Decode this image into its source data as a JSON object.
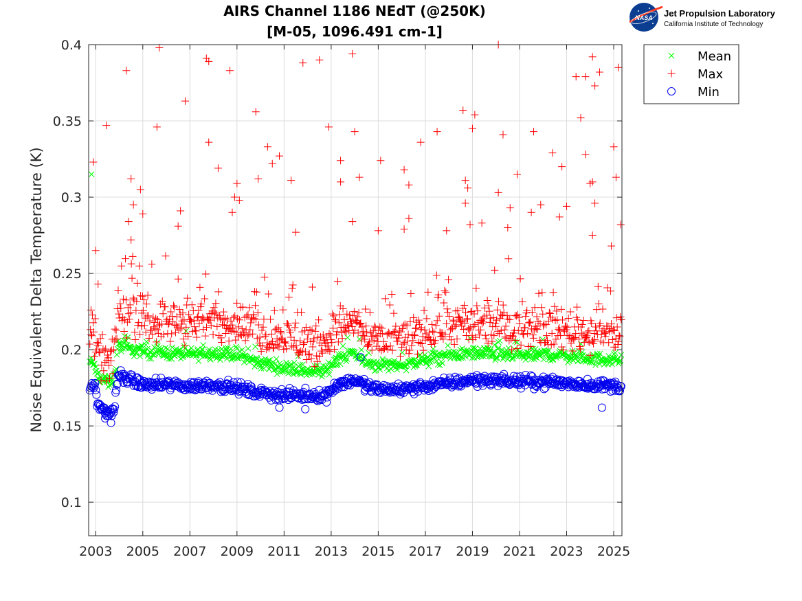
{
  "logo": {
    "org_name": "Jet Propulsion Laboratory",
    "org_sub": "California Institute of Technology",
    "badge_text": "NASA"
  },
  "chart_data": {
    "type": "scatter",
    "title": "AIRS Channel 1186 NEdT (@250K)",
    "subtitle": "[M-05, 1096.491 cm-1]",
    "xlabel": "",
    "ylabel": "Noise Equivalent Delta Temperature (K)",
    "xlim": [
      2002.7,
      2025.35
    ],
    "ylim": [
      0.078,
      0.4
    ],
    "x_ticks": [
      2003,
      2005,
      2007,
      2009,
      2011,
      2013,
      2015,
      2017,
      2019,
      2021,
      2023,
      2025
    ],
    "x_tick_labels": [
      "2003",
      "2005",
      "2007",
      "2009",
      "2011",
      "2013",
      "2015",
      "2017",
      "2019",
      "2021",
      "2023",
      "2025"
    ],
    "y_ticks": [
      0.1,
      0.15,
      0.2,
      0.25,
      0.3,
      0.35,
      0.4
    ],
    "y_tick_labels": [
      "0.1",
      "0.15",
      "0.2",
      "0.25",
      "0.3",
      "0.35",
      "0.4"
    ],
    "grid": true,
    "legend_position": "outside-top-right",
    "series": [
      {
        "name": "Mean",
        "marker": "x",
        "color": "#00ff00",
        "baseline": [
          [
            2002.75,
            0.192
          ],
          [
            2002.95,
            0.19
          ],
          [
            2003.05,
            0.182
          ],
          [
            2003.35,
            0.18
          ],
          [
            2003.6,
            0.178
          ],
          [
            2003.8,
            0.182
          ],
          [
            2003.95,
            0.203
          ],
          [
            2004.5,
            0.2
          ],
          [
            2005.0,
            0.199
          ],
          [
            2006.0,
            0.198
          ],
          [
            2007.0,
            0.197
          ],
          [
            2008.0,
            0.198
          ],
          [
            2009.0,
            0.197
          ],
          [
            2009.8,
            0.192
          ],
          [
            2010.5,
            0.19
          ],
          [
            2011.0,
            0.188
          ],
          [
            2012.0,
            0.186
          ],
          [
            2012.8,
            0.186
          ],
          [
            2013.2,
            0.194
          ],
          [
            2014.0,
            0.198
          ],
          [
            2014.5,
            0.191
          ],
          [
            2015.0,
            0.19
          ],
          [
            2016.0,
            0.19
          ],
          [
            2017.0,
            0.193
          ],
          [
            2018.0,
            0.196
          ],
          [
            2019.0,
            0.198
          ],
          [
            2020.0,
            0.197
          ],
          [
            2021.0,
            0.196
          ],
          [
            2022.0,
            0.197
          ],
          [
            2023.0,
            0.196
          ],
          [
            2024.0,
            0.194
          ],
          [
            2025.35,
            0.193
          ]
        ],
        "spread": 0.006,
        "outliers": [
          [
            2002.82,
            0.315
          ],
          [
            2020.1,
            0.205
          ],
          [
            2014.2,
            0.207
          ]
        ]
      },
      {
        "name": "Max",
        "marker": "+",
        "color": "#ff0000",
        "baseline": [
          [
            2002.75,
            0.21
          ],
          [
            2002.9,
            0.212
          ],
          [
            2003.05,
            0.196
          ],
          [
            2003.35,
            0.193
          ],
          [
            2003.6,
            0.192
          ],
          [
            2003.8,
            0.196
          ],
          [
            2003.95,
            0.225
          ],
          [
            2004.5,
            0.222
          ],
          [
            2005.0,
            0.22
          ],
          [
            2006.0,
            0.218
          ],
          [
            2007.0,
            0.217
          ],
          [
            2008.0,
            0.219
          ],
          [
            2009.0,
            0.218
          ],
          [
            2009.8,
            0.213
          ],
          [
            2010.5,
            0.21
          ],
          [
            2011.0,
            0.208
          ],
          [
            2012.0,
            0.204
          ],
          [
            2012.8,
            0.205
          ],
          [
            2013.2,
            0.215
          ],
          [
            2014.0,
            0.218
          ],
          [
            2014.5,
            0.207
          ],
          [
            2015.0,
            0.206
          ],
          [
            2016.0,
            0.207
          ],
          [
            2017.0,
            0.211
          ],
          [
            2018.0,
            0.215
          ],
          [
            2019.0,
            0.216
          ],
          [
            2020.0,
            0.216
          ],
          [
            2021.0,
            0.215
          ],
          [
            2022.0,
            0.215
          ],
          [
            2023.0,
            0.213
          ],
          [
            2024.0,
            0.211
          ],
          [
            2025.35,
            0.21
          ]
        ],
        "spread": 0.02,
        "outliers": [
          [
            2002.8,
            0.226
          ],
          [
            2002.9,
            0.323
          ],
          [
            2003.0,
            0.265
          ],
          [
            2003.1,
            0.243
          ],
          [
            2003.45,
            0.347
          ],
          [
            2004.3,
            0.383
          ],
          [
            2004.5,
            0.312
          ],
          [
            2004.9,
            0.305
          ],
          [
            2004.6,
            0.295
          ],
          [
            2005.0,
            0.289
          ],
          [
            2004.4,
            0.284
          ],
          [
            2004.5,
            0.272
          ],
          [
            2005.6,
            0.346
          ],
          [
            2005.7,
            0.398
          ],
          [
            2006.6,
            0.291
          ],
          [
            2006.5,
            0.281
          ],
          [
            2006.8,
            0.363
          ],
          [
            2007.7,
            0.391
          ],
          [
            2007.8,
            0.389
          ],
          [
            2007.8,
            0.336
          ],
          [
            2008.2,
            0.319
          ],
          [
            2008.7,
            0.383
          ],
          [
            2008.8,
            0.29
          ],
          [
            2008.9,
            0.3
          ],
          [
            2009.0,
            0.309
          ],
          [
            2009.1,
            0.298
          ],
          [
            2009.8,
            0.356
          ],
          [
            2009.9,
            0.312
          ],
          [
            2010.3,
            0.333
          ],
          [
            2010.5,
            0.322
          ],
          [
            2010.8,
            0.327
          ],
          [
            2011.3,
            0.311
          ],
          [
            2011.5,
            0.277
          ],
          [
            2011.8,
            0.388
          ],
          [
            2012.5,
            0.39
          ],
          [
            2012.9,
            0.346
          ],
          [
            2013.4,
            0.324
          ],
          [
            2013.4,
            0.31
          ],
          [
            2013.9,
            0.394
          ],
          [
            2014.0,
            0.343
          ],
          [
            2013.9,
            0.284
          ],
          [
            2014.2,
            0.313
          ],
          [
            2015.1,
            0.324
          ],
          [
            2015.0,
            0.278
          ],
          [
            2016.1,
            0.318
          ],
          [
            2016.3,
            0.308
          ],
          [
            2016.3,
            0.286
          ],
          [
            2016.1,
            0.279
          ],
          [
            2016.8,
            0.336
          ],
          [
            2017.5,
            0.343
          ],
          [
            2017.9,
            0.278
          ],
          [
            2018.6,
            0.357
          ],
          [
            2018.7,
            0.311
          ],
          [
            2018.8,
            0.306
          ],
          [
            2018.7,
            0.296
          ],
          [
            2018.9,
            0.282
          ],
          [
            2019.0,
            0.345
          ],
          [
            2019.1,
            0.354
          ],
          [
            2019.4,
            0.283
          ],
          [
            2020.1,
            0.4
          ],
          [
            2020.3,
            0.341
          ],
          [
            2020.1,
            0.303
          ],
          [
            2020.6,
            0.293
          ],
          [
            2020.5,
            0.28
          ],
          [
            2020.9,
            0.315
          ],
          [
            2021.6,
            0.343
          ],
          [
            2021.5,
            0.29
          ],
          [
            2021.9,
            0.295
          ],
          [
            2022.4,
            0.329
          ],
          [
            2022.8,
            0.32
          ],
          [
            2022.7,
            0.287
          ],
          [
            2023.0,
            0.294
          ],
          [
            2023.4,
            0.379
          ],
          [
            2023.6,
            0.352
          ],
          [
            2023.8,
            0.379
          ],
          [
            2023.8,
            0.328
          ],
          [
            2024.1,
            0.392
          ],
          [
            2024.2,
            0.373
          ],
          [
            2024.4,
            0.382
          ],
          [
            2024.1,
            0.31
          ],
          [
            2024.2,
            0.296
          ],
          [
            2024.0,
            0.309
          ],
          [
            2024.1,
            0.275
          ],
          [
            2024.9,
            0.268
          ],
          [
            2025.0,
            0.333
          ],
          [
            2025.1,
            0.313
          ],
          [
            2025.2,
            0.385
          ],
          [
            2025.3,
            0.282
          ],
          [
            2012.2,
            0.241
          ]
        ]
      },
      {
        "name": "Min",
        "marker": "o",
        "color": "#0000ee",
        "baseline": [
          [
            2002.75,
            0.175
          ],
          [
            2002.95,
            0.178
          ],
          [
            2003.05,
            0.165
          ],
          [
            2003.35,
            0.16
          ],
          [
            2003.6,
            0.158
          ],
          [
            2003.8,
            0.162
          ],
          [
            2003.95,
            0.183
          ],
          [
            2004.5,
            0.18
          ],
          [
            2005.0,
            0.177
          ],
          [
            2006.0,
            0.177
          ],
          [
            2007.0,
            0.176
          ],
          [
            2008.0,
            0.177
          ],
          [
            2009.0,
            0.175
          ],
          [
            2009.8,
            0.172
          ],
          [
            2010.5,
            0.171
          ],
          [
            2011.0,
            0.17
          ],
          [
            2012.0,
            0.17
          ],
          [
            2012.8,
            0.17
          ],
          [
            2013.2,
            0.177
          ],
          [
            2014.0,
            0.18
          ],
          [
            2014.5,
            0.176
          ],
          [
            2015.0,
            0.174
          ],
          [
            2016.0,
            0.174
          ],
          [
            2017.0,
            0.176
          ],
          [
            2018.0,
            0.178
          ],
          [
            2019.0,
            0.18
          ],
          [
            2020.0,
            0.18
          ],
          [
            2021.0,
            0.179
          ],
          [
            2022.0,
            0.179
          ],
          [
            2023.0,
            0.178
          ],
          [
            2024.0,
            0.177
          ],
          [
            2025.35,
            0.176
          ]
        ],
        "spread": 0.0055,
        "outliers": [
          [
            2003.65,
            0.152
          ],
          [
            2014.25,
            0.195
          ],
          [
            2024.5,
            0.162
          ],
          [
            2011.9,
            0.161
          ],
          [
            2003.4,
            0.155
          ],
          [
            2010.8,
            0.162
          ]
        ]
      }
    ]
  }
}
